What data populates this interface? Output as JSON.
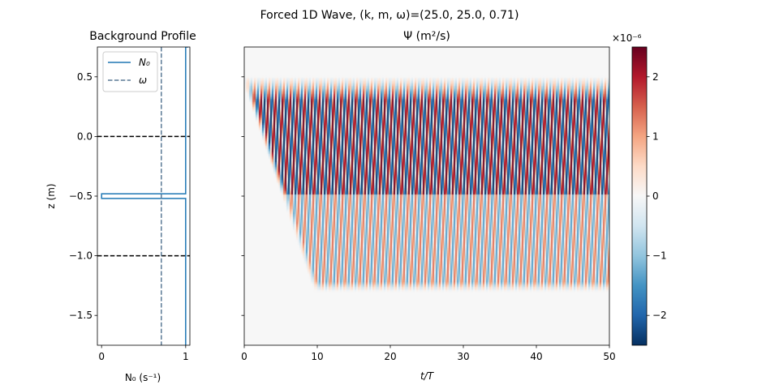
{
  "figure": {
    "suptitle": "Forced 1D Wave, (k, m, ω)=(25.0, 25.0, 0.71)"
  },
  "chart_data": [
    {
      "type": "line",
      "title": "Background Profile",
      "xlabel": "N₀ (s⁻¹)",
      "ylabel": "z (m)",
      "xlim": [
        -0.05,
        1.05
      ],
      "ylim": [
        -1.75,
        0.75
      ],
      "xticks": [
        "0",
        "1"
      ],
      "xtick_values": [
        0,
        1
      ],
      "yticks": [
        "0.5",
        "0.0",
        "−0.5",
        "−1.0",
        "−1.5"
      ],
      "ytick_values": [
        0.5,
        0.0,
        -0.5,
        -1.0,
        -1.5
      ],
      "legend_position": "top-left",
      "series": [
        {
          "name": "N₀",
          "color": "#1f77b4",
          "style": "solid",
          "x": [
            1.03,
            1.03,
            1.0,
            1.0,
            0.0,
            0.0,
            1.0,
            1.0
          ],
          "y": [
            0.75,
            0.75,
            0.75,
            -0.48,
            -0.48,
            -0.52,
            -0.52,
            -1.75
          ]
        },
        {
          "name": "ω",
          "color": "#5b7a96",
          "style": "dashed",
          "x": [
            0.71,
            0.71
          ],
          "y": [
            0.75,
            -1.75
          ]
        }
      ],
      "reference_lines": [
        {
          "y": 0.0,
          "color": "#000000",
          "style": "dashed"
        },
        {
          "y": -1.0,
          "color": "#000000",
          "style": "dashed"
        }
      ]
    },
    {
      "type": "heatmap",
      "title": "Ψ (m²/s)",
      "xlabel": "t/T",
      "xlim": [
        0,
        50
      ],
      "ylim": [
        -1.75,
        0.75
      ],
      "xticks": [
        "0",
        "10",
        "20",
        "30",
        "40",
        "50"
      ],
      "xtick_values": [
        0,
        10,
        20,
        30,
        40,
        50
      ],
      "colormap": "RdBu_r",
      "colorbar": {
        "vmin": -2.5e-06,
        "vmax": 2.5e-06,
        "scale_label": "×10⁻⁶",
        "ticks": [
          "−2",
          "−1",
          "0",
          "1",
          "2"
        ],
        "tick_values": [
          -2,
          -1,
          0,
          1,
          2
        ]
      },
      "field": {
        "forcing_region_z": [
          0.5,
          0.3
        ],
        "upper_layer_bottom_z": -0.48,
        "lower_packet_bottom_z": -1.3,
        "front_arrival_t": 10,
        "peak_amplitude": 2.5e-06,
        "lower_layer_amplitude_fraction": 0.55
      }
    }
  ]
}
